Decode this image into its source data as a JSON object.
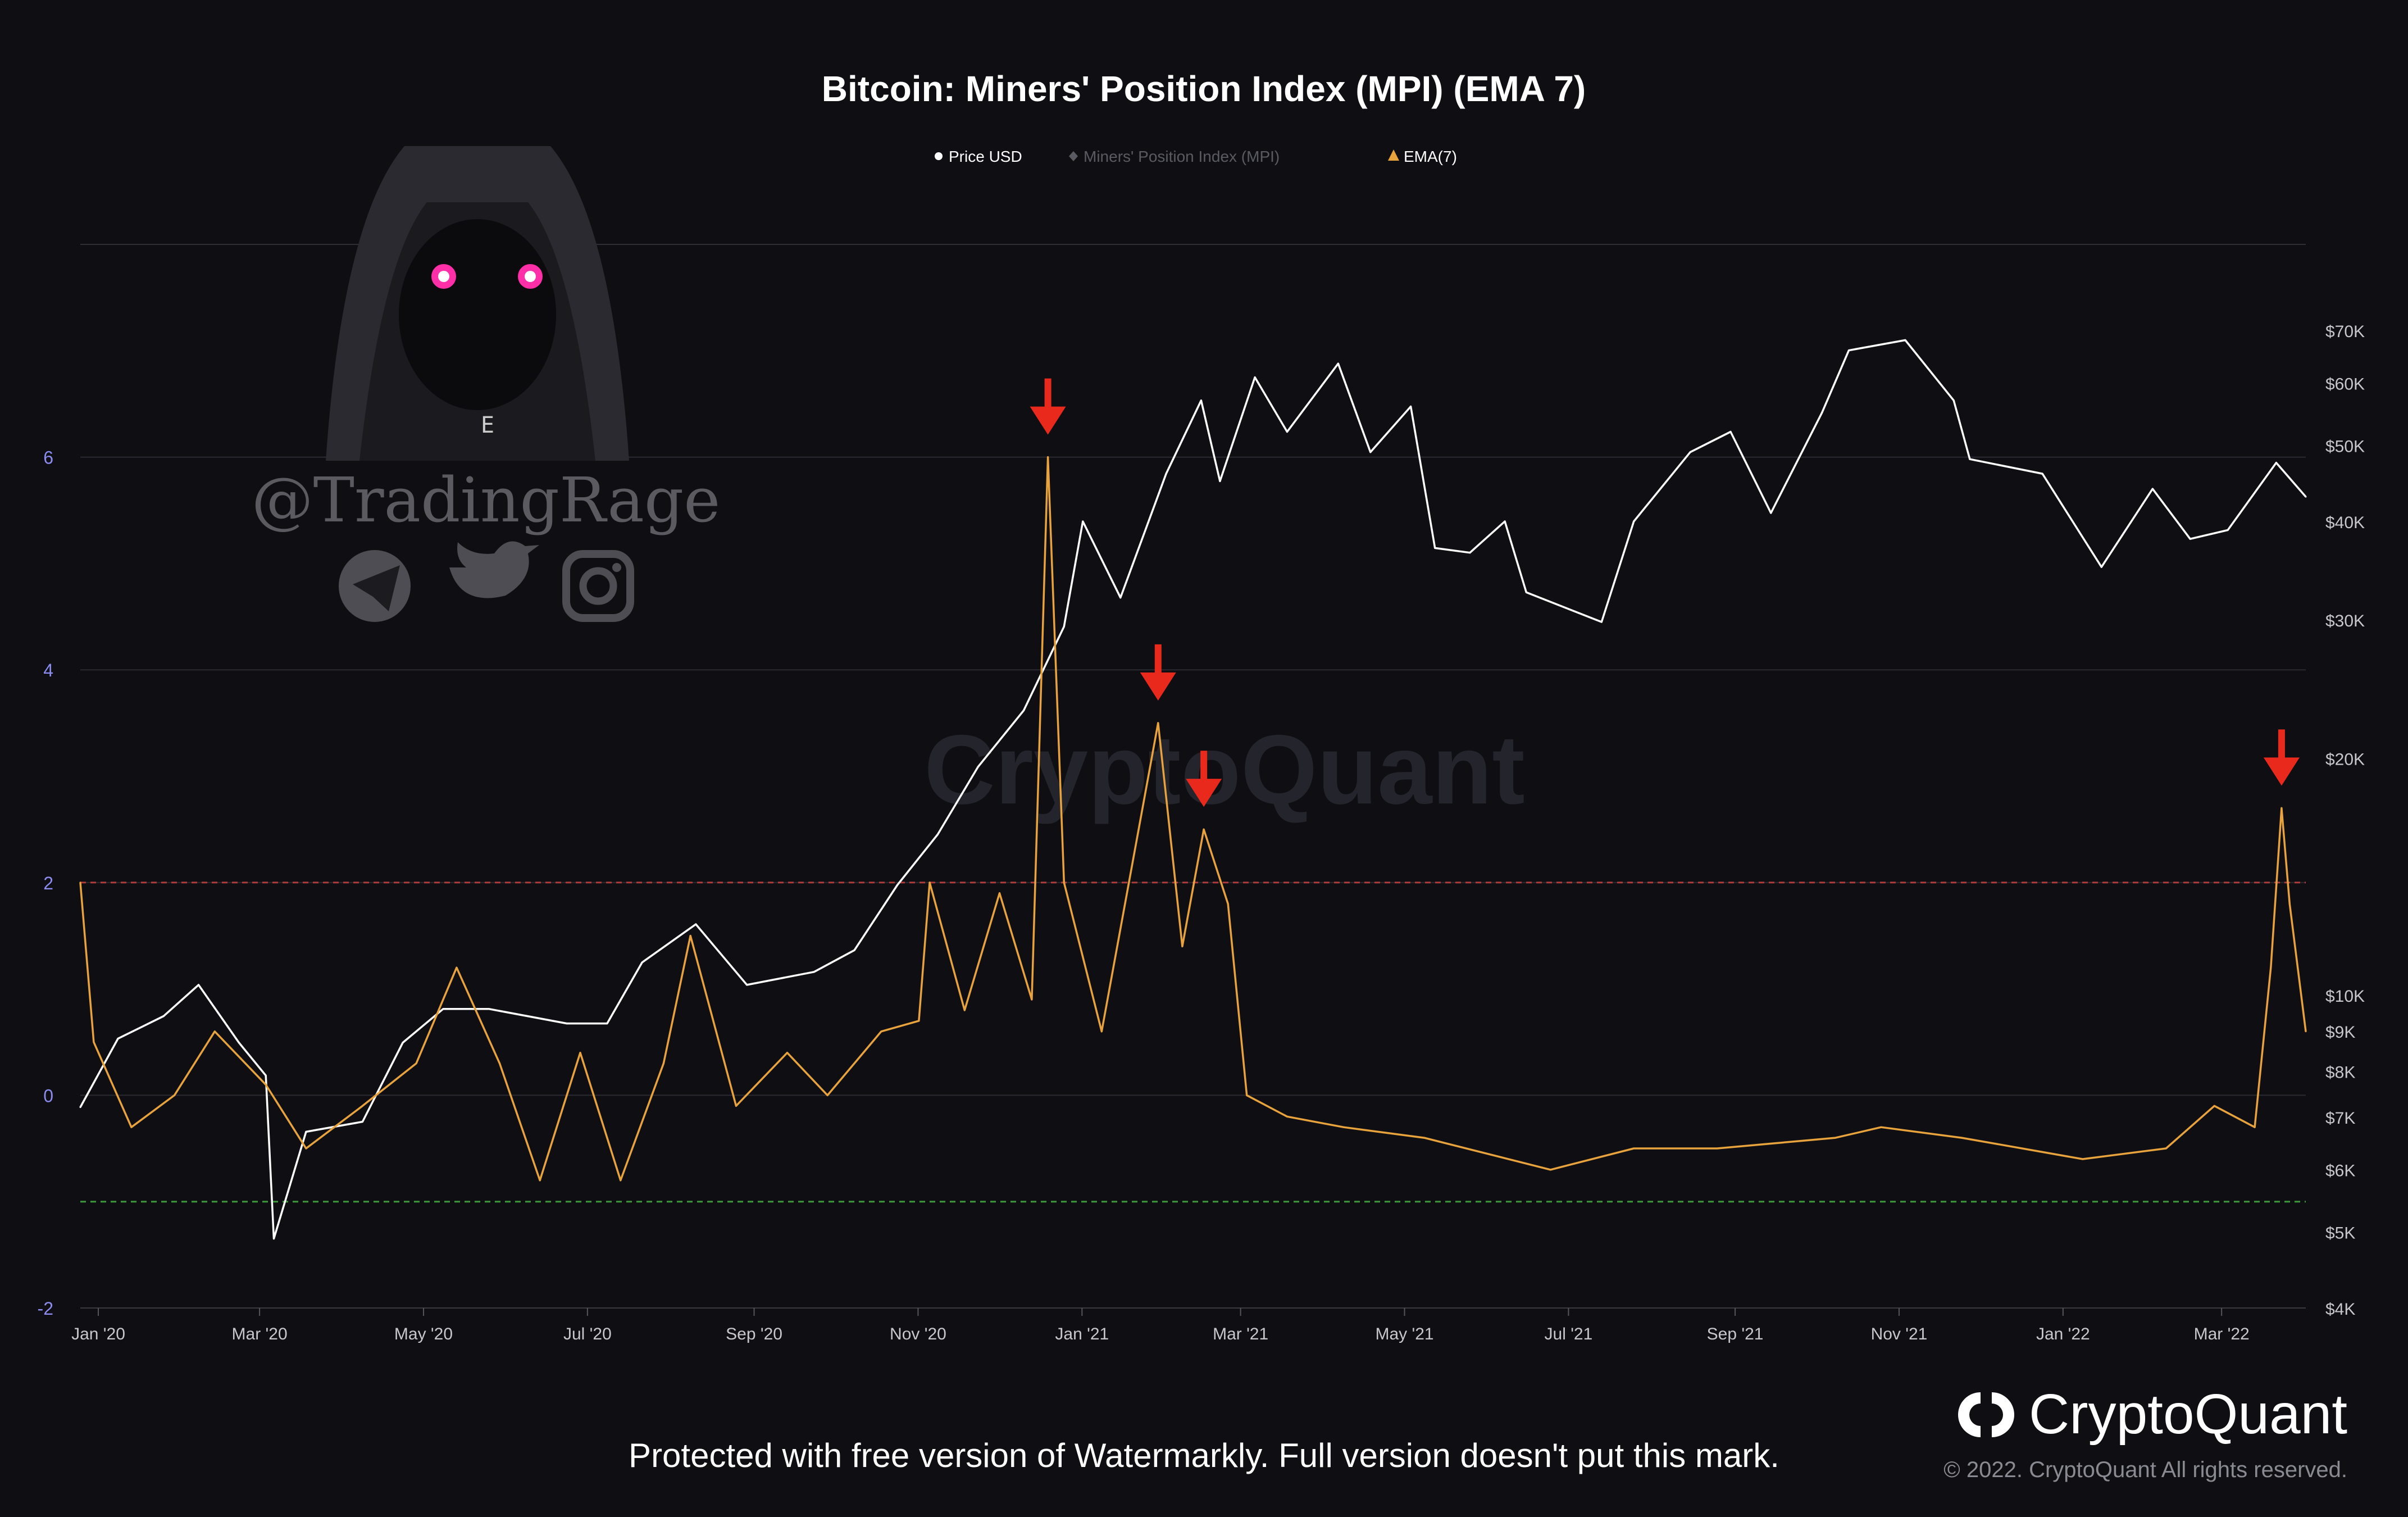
{
  "chart_data": {
    "type": "line",
    "title": "Bitcoin: Miners' Position Index (MPI) (EMA 7)",
    "legend": {
      "placement": "top-center",
      "items": [
        {
          "name": "Price USD",
          "marker": "circle",
          "color": "#ffffff"
        },
        {
          "name": "Miners' Position Index (MPI)",
          "marker": "diamond",
          "color": "#5a5a62"
        },
        {
          "name": "EMA(7)",
          "marker": "triangle",
          "color": "#e8a33d"
        }
      ]
    },
    "x_ticks": [
      "Jan '20",
      "Mar '20",
      "May '20",
      "Jul '20",
      "Sep '20",
      "Nov '20",
      "Jan '21",
      "Mar '21",
      "May '21",
      "Jul '21",
      "Sep '21",
      "Nov '21",
      "Jan '22",
      "Mar '22"
    ],
    "x_range": [
      "2020-01-01",
      "2022-04-08"
    ],
    "y_left": {
      "ticks": [
        -2,
        0,
        2,
        4,
        6
      ],
      "range": [
        -2,
        8
      ],
      "color": "#8b8bf0"
    },
    "y_right": {
      "scale": "log",
      "ticks": [
        4000,
        5000,
        6000,
        7000,
        8000,
        9000,
        10000,
        20000,
        30000,
        40000,
        50000,
        60000,
        70000
      ],
      "tick_labels": [
        "$4K",
        "$5K",
        "$6K",
        "$7K",
        "$8K",
        "$9K",
        "$10K",
        "$20K",
        "$30K",
        "$40K",
        "$50K",
        "$60K",
        "$70K"
      ],
      "range": [
        4000,
        90000
      ]
    },
    "reference_lines": [
      {
        "y": 2,
        "color": "#b03a3a",
        "style": "dashed"
      },
      {
        "y": -1,
        "color": "#3a9a3a",
        "style": "dashed"
      }
    ],
    "series": [
      {
        "name": "Price USD",
        "axis": "right",
        "color": "#ffffff",
        "points": [
          [
            "2020-01-01",
            7200
          ],
          [
            "2020-01-15",
            8800
          ],
          [
            "2020-02-01",
            9400
          ],
          [
            "2020-02-14",
            10300
          ],
          [
            "2020-02-29",
            8700
          ],
          [
            "2020-03-10",
            7900
          ],
          [
            "2020-03-13",
            4900
          ],
          [
            "2020-03-25",
            6700
          ],
          [
            "2020-04-15",
            6900
          ],
          [
            "2020-04-30",
            8700
          ],
          [
            "2020-05-15",
            9600
          ],
          [
            "2020-06-01",
            9600
          ],
          [
            "2020-06-30",
            9200
          ],
          [
            "2020-07-15",
            9200
          ],
          [
            "2020-07-28",
            11000
          ],
          [
            "2020-08-17",
            12300
          ],
          [
            "2020-09-05",
            10300
          ],
          [
            "2020-09-30",
            10700
          ],
          [
            "2020-10-15",
            11400
          ],
          [
            "2020-10-31",
            13800
          ],
          [
            "2020-11-15",
            16000
          ],
          [
            "2020-11-30",
            19500
          ],
          [
            "2020-12-17",
            23000
          ],
          [
            "2021-01-01",
            29400
          ],
          [
            "2021-01-08",
            40000
          ],
          [
            "2021-01-22",
            32000
          ],
          [
            "2021-02-08",
            46000
          ],
          [
            "2021-02-21",
            57000
          ],
          [
            "2021-02-28",
            45000
          ],
          [
            "2021-03-13",
            61000
          ],
          [
            "2021-03-25",
            52000
          ],
          [
            "2021-04-13",
            63500
          ],
          [
            "2021-04-25",
            49000
          ],
          [
            "2021-05-10",
            56000
          ],
          [
            "2021-05-19",
            37000
          ],
          [
            "2021-06-01",
            36500
          ],
          [
            "2021-06-14",
            40000
          ],
          [
            "2021-06-22",
            32500
          ],
          [
            "2021-07-20",
            29800
          ],
          [
            "2021-08-01",
            40000
          ],
          [
            "2021-08-22",
            49000
          ],
          [
            "2021-09-06",
            52000
          ],
          [
            "2021-09-21",
            41000
          ],
          [
            "2021-10-10",
            55000
          ],
          [
            "2021-10-20",
            66000
          ],
          [
            "2021-11-10",
            68000
          ],
          [
            "2021-11-28",
            57000
          ],
          [
            "2021-12-04",
            48000
          ],
          [
            "2021-12-31",
            46000
          ],
          [
            "2022-01-22",
            35000
          ],
          [
            "2022-02-10",
            44000
          ],
          [
            "2022-02-24",
            38000
          ],
          [
            "2022-03-10",
            39000
          ],
          [
            "2022-03-28",
            47500
          ],
          [
            "2022-04-08",
            43000
          ]
        ]
      },
      {
        "name": "EMA(7)",
        "axis": "left",
        "color": "#e8a33d",
        "points": [
          [
            "2020-01-01",
            2.0
          ],
          [
            "2020-01-06",
            0.5
          ],
          [
            "2020-01-20",
            -0.3
          ],
          [
            "2020-02-05",
            0.0
          ],
          [
            "2020-02-20",
            0.6
          ],
          [
            "2020-03-10",
            0.1
          ],
          [
            "2020-03-25",
            -0.5
          ],
          [
            "2020-04-15",
            -0.1
          ],
          [
            "2020-05-05",
            0.3
          ],
          [
            "2020-05-20",
            1.2
          ],
          [
            "2020-06-05",
            0.3
          ],
          [
            "2020-06-20",
            -0.8
          ],
          [
            "2020-07-05",
            0.4
          ],
          [
            "2020-07-20",
            -0.8
          ],
          [
            "2020-08-05",
            0.3
          ],
          [
            "2020-08-15",
            1.5
          ],
          [
            "2020-09-01",
            -0.1
          ],
          [
            "2020-09-20",
            0.4
          ],
          [
            "2020-10-05",
            0.0
          ],
          [
            "2020-10-25",
            0.6
          ],
          [
            "2020-11-08",
            0.7
          ],
          [
            "2020-11-12",
            2.0
          ],
          [
            "2020-11-25",
            0.8
          ],
          [
            "2020-12-08",
            1.9
          ],
          [
            "2020-12-20",
            0.9
          ],
          [
            "2020-12-26",
            6.0
          ],
          [
            "2021-01-01",
            2.0
          ],
          [
            "2021-01-15",
            0.6
          ],
          [
            "2021-02-05",
            3.5
          ],
          [
            "2021-02-14",
            1.4
          ],
          [
            "2021-02-22",
            2.5
          ],
          [
            "2021-03-03",
            1.8
          ],
          [
            "2021-03-10",
            0.0
          ],
          [
            "2021-03-25",
            -0.2
          ],
          [
            "2021-04-15",
            -0.3
          ],
          [
            "2021-05-15",
            -0.4
          ],
          [
            "2021-07-01",
            -0.7
          ],
          [
            "2021-08-01",
            -0.5
          ],
          [
            "2021-09-01",
            -0.5
          ],
          [
            "2021-10-15",
            -0.4
          ],
          [
            "2021-11-01",
            -0.3
          ],
          [
            "2021-12-01",
            -0.4
          ],
          [
            "2022-01-15",
            -0.6
          ],
          [
            "2022-02-15",
            -0.5
          ],
          [
            "2022-03-05",
            -0.1
          ],
          [
            "2022-03-20",
            -0.3
          ],
          [
            "2022-03-26",
            1.2
          ],
          [
            "2022-03-30",
            2.7
          ],
          [
            "2022-04-02",
            1.8
          ],
          [
            "2022-04-08",
            0.6
          ]
        ]
      }
    ],
    "annotations": [
      {
        "type": "arrow",
        "date": "2020-12-26",
        "value": 6.0,
        "color": "#e8291c"
      },
      {
        "type": "arrow",
        "date": "2021-02-05",
        "value": 3.5,
        "color": "#e8291c"
      },
      {
        "type": "arrow",
        "date": "2021-02-22",
        "value": 2.5,
        "color": "#e8291c"
      },
      {
        "type": "arrow",
        "date": "2022-03-30",
        "value": 2.7,
        "color": "#e8291c"
      }
    ]
  },
  "chart_watermark": "CryptoQuant",
  "overlay": {
    "handle": "@TradingRage",
    "icons": [
      "telegram-icon",
      "twitter-icon",
      "instagram-icon"
    ]
  },
  "footer": {
    "watermark_notice": "Protected with free version of Watermarkly. Full version doesn't put this mark.",
    "brand": "CryptoQuant",
    "copyright": "© 2022. CryptoQuant All rights reserved."
  }
}
